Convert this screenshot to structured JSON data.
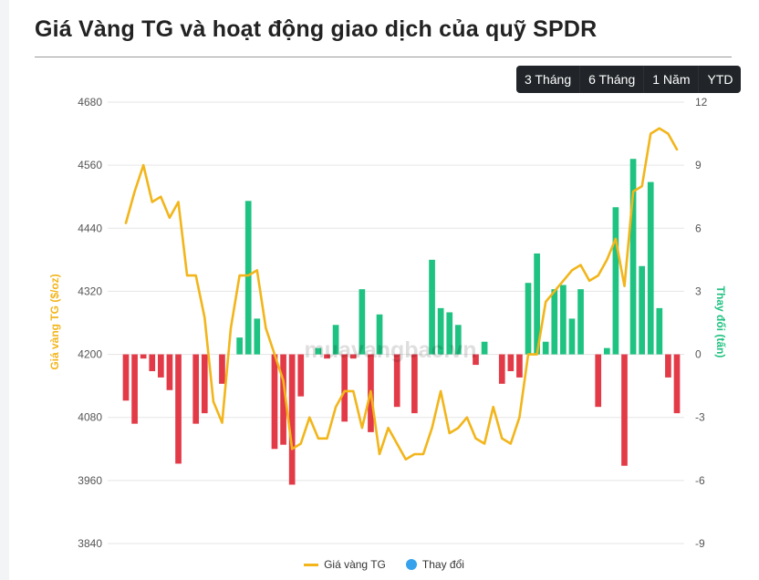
{
  "title": "Giá Vàng TG và hoạt động giao dịch của quỹ SPDR",
  "range_buttons": [
    {
      "label": "3 Tháng",
      "active": true
    },
    {
      "label": "6 Tháng",
      "active": false
    },
    {
      "label": "1 Năm",
      "active": false
    },
    {
      "label": "YTD",
      "active": false
    }
  ],
  "watermark": "muavangbac.vn",
  "legend": {
    "line_label": "Giá vàng TG",
    "bar_label": "Thay đổi"
  },
  "colors": {
    "line": "#f2b51a",
    "bar_positive": "#1ec281",
    "bar_negative": "#e23a47",
    "active_button": "#0d6efd",
    "left_axis_label": "#f2b51a",
    "right_axis_label": "#1ec281"
  },
  "chart_data": {
    "type": "bar",
    "ylabel": "Giá vàng TG ($/oz)",
    "y2label": "Thay đổi (tấn)",
    "ylim": [
      3840,
      4680
    ],
    "y2lim": [
      -9,
      12
    ],
    "yticks": [
      4680,
      4560,
      4440,
      4320,
      4200,
      4080,
      3960,
      3840
    ],
    "y2ticks": [
      12,
      9,
      6,
      3,
      0,
      -3,
      -6,
      -9
    ],
    "grid": true,
    "legend_position": "bottom",
    "series": [
      {
        "name": "Giá vàng TG",
        "type": "line",
        "axis": "left",
        "values": [
          4450,
          4510,
          4560,
          4490,
          4500,
          4460,
          4490,
          4350,
          4350,
          4270,
          4110,
          4070,
          4250,
          4350,
          4350,
          4360,
          4250,
          4200,
          4150,
          4020,
          4030,
          4080,
          4040,
          4040,
          4100,
          4130,
          4130,
          4060,
          4130,
          4010,
          4060,
          4030,
          4000,
          4010,
          4010,
          4060,
          4130,
          4050,
          4060,
          4080,
          4040,
          4030,
          4100,
          4040,
          4030,
          4080,
          4200,
          4200,
          4300,
          4320,
          4340,
          4360,
          4370,
          4340,
          4350,
          4380,
          4420,
          4330,
          4510,
          4520,
          4620,
          4630,
          4620,
          4590
        ]
      },
      {
        "name": "Thay đổi",
        "type": "bar",
        "axis": "right",
        "values": [
          -2.2,
          -3.3,
          -0.2,
          -0.8,
          -1.1,
          -1.7,
          -5.2,
          0,
          -3.3,
          -2.8,
          0,
          -1.4,
          0,
          0.8,
          7.3,
          1.7,
          0,
          -4.5,
          -4.3,
          -6.2,
          -2.0,
          0,
          0.3,
          -0.2,
          1.4,
          -3.2,
          -0.2,
          3.1,
          -3.7,
          1.9,
          0,
          -2.5,
          0,
          -2.8,
          0,
          4.5,
          2.2,
          2.0,
          1.4,
          0,
          -0.5,
          0.6,
          0,
          -1.4,
          -0.8,
          -1.1,
          3.4,
          4.8,
          0.6,
          3.1,
          3.3,
          1.7,
          3.1,
          0,
          -2.5,
          0.3,
          7.0,
          -5.3,
          9.3,
          4.2,
          8.2,
          2.2,
          -1.1,
          -2.8
        ]
      }
    ]
  }
}
